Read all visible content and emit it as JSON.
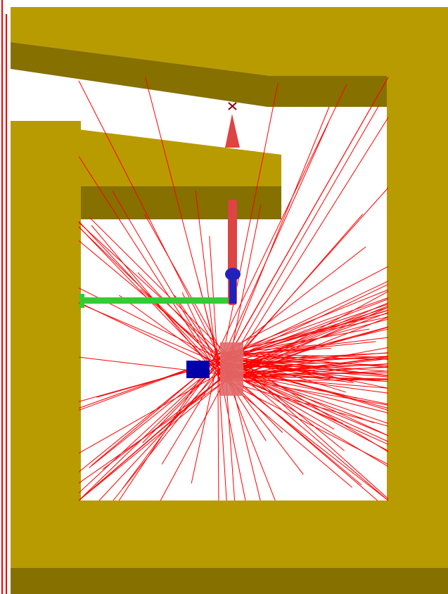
{
  "scene": {
    "colors": {
      "background": "#ffffff",
      "wall_face": "#b89b00",
      "wall_shadow": "#857000",
      "ray": "#ff0000",
      "frame_line": "#ee0000",
      "axis_x": "#33cc33",
      "axis_y": "#dd4444",
      "axis_z": "#2222bb",
      "source_block": "#e06a6a",
      "detector_block": "#0000aa"
    },
    "icons": [
      "axis-gizmo",
      "origin-cross-marker"
    ],
    "ray_count": 160
  }
}
